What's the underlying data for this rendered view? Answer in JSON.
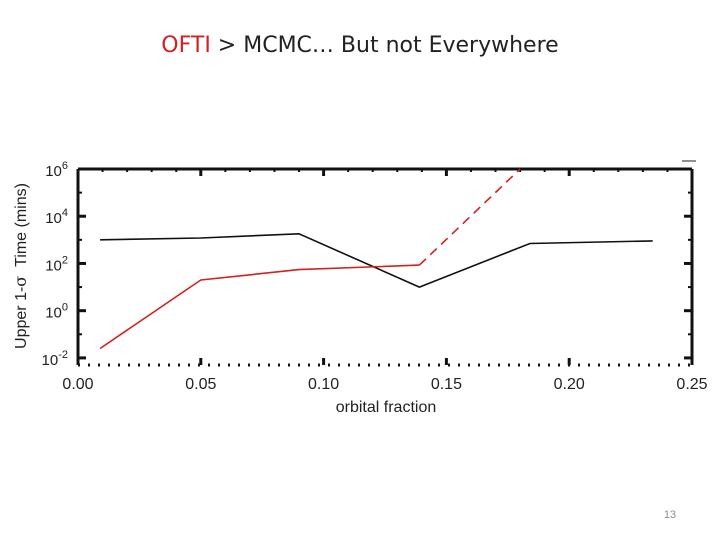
{
  "slide": {
    "title_accent": "OFTI",
    "title_rest": " > MCMC… But not Everywhere",
    "page_number": "13"
  },
  "colors": {
    "accent": "#d42020",
    "series_black": "#111111",
    "series_red": "#d42020"
  },
  "chart_data": {
    "type": "line",
    "xlabel": "orbital fraction",
    "ylabel_prefix": "Upper 1-",
    "ylabel_symbol": "σ",
    "ylabel_suffix": "  Time (mins)",
    "xlim": [
      0.0,
      0.25
    ],
    "ylim_log10": [
      -2.3,
      6
    ],
    "yscale": "log",
    "x_ticks": [
      0.0,
      0.05,
      0.1,
      0.15,
      0.2,
      0.25
    ],
    "x_tick_labels": [
      "0.00",
      "0.05",
      "0.10",
      "0.15",
      "0.20",
      "0.25"
    ],
    "y_ticks": [
      {
        "base": "10",
        "exp": "-2",
        "log": -2
      },
      {
        "base": "10",
        "exp": "0",
        "log": 0
      },
      {
        "base": "10",
        "exp": "2",
        "log": 2
      },
      {
        "base": "10",
        "exp": "4",
        "log": 4
      },
      {
        "base": "10",
        "exp": "6",
        "log": 6
      }
    ],
    "grid": false,
    "legend": "none",
    "series": [
      {
        "color": "#111111",
        "dash": "solid",
        "x": [
          0.009,
          0.05,
          0.09,
          0.139,
          0.184,
          0.234
        ],
        "y": [
          1000,
          1200,
          1800,
          10,
          700,
          900
        ]
      },
      {
        "color": "#d42020",
        "dash": "solid",
        "x": [
          0.009,
          0.05,
          0.09,
          0.139
        ],
        "y": [
          0.025,
          20,
          55,
          85
        ]
      },
      {
        "color": "#d42020",
        "dash": "dashed",
        "x": [
          0.139,
          0.18
        ],
        "y": [
          85,
          1000000
        ]
      }
    ]
  }
}
